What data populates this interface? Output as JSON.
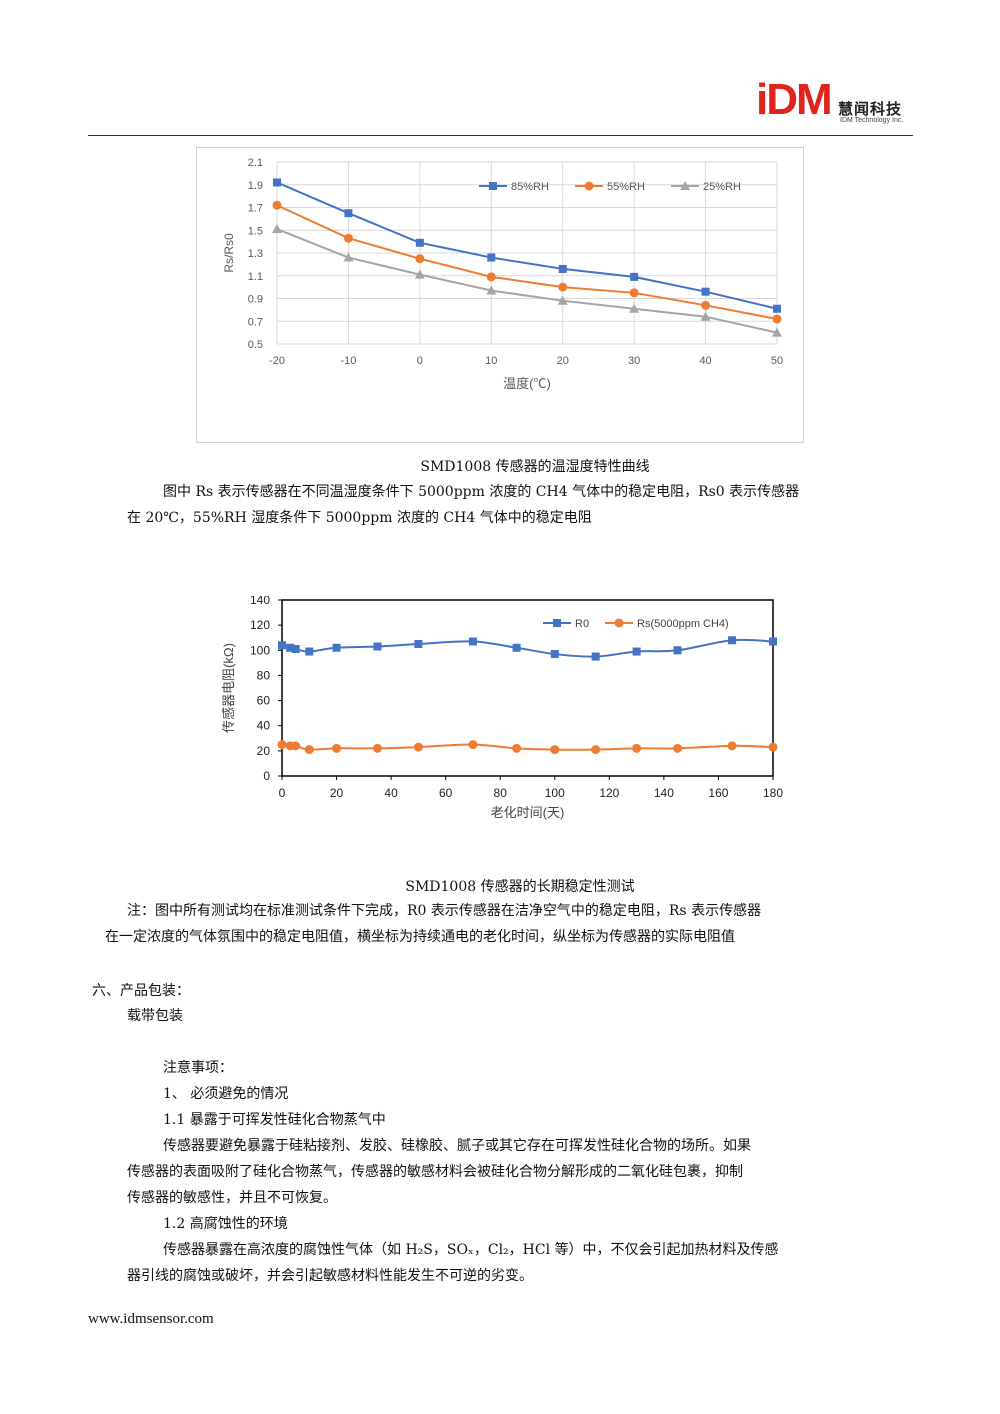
{
  "header": {
    "logo_mark": "iDM",
    "logo_cn": "慧闻科技",
    "logo_en": "IDM Technology Inc."
  },
  "charts": {
    "c1_caption": "SMD1008 传感器的温湿度特性曲线",
    "c2_caption": "SMD1008 传感器的长期稳定性测试"
  },
  "chart_data": [
    {
      "type": "line",
      "xlabel": "温度(℃)",
      "ylabel": "Rs/Rs0",
      "x": [
        -20,
        -10,
        0,
        10,
        20,
        30,
        40,
        50
      ],
      "xlim": [
        -20,
        50
      ],
      "ylim": [
        0.5,
        2.1
      ],
      "yticks": [
        0.5,
        0.7,
        0.9,
        1.1,
        1.3,
        1.5,
        1.7,
        1.9,
        2.1
      ],
      "grid": true,
      "legend": "top-right",
      "series": [
        {
          "name": "85%RH",
          "color": "#4472C4",
          "marker": "square",
          "values": [
            1.92,
            1.65,
            1.39,
            1.26,
            1.16,
            1.09,
            0.96,
            0.81
          ]
        },
        {
          "name": "55%RH",
          "color": "#ED7D31",
          "marker": "circle",
          "values": [
            1.72,
            1.43,
            1.25,
            1.09,
            1.0,
            0.95,
            0.84,
            0.72
          ]
        },
        {
          "name": "25%RH",
          "color": "#A5A5A5",
          "marker": "triangle",
          "values": [
            1.51,
            1.26,
            1.11,
            0.97,
            0.88,
            0.81,
            0.74,
            0.6
          ]
        }
      ]
    },
    {
      "type": "line",
      "xlabel": "老化时间(天)",
      "ylabel": "传感器电阻(kΩ)",
      "xlim": [
        0,
        180
      ],
      "ylim": [
        0,
        140
      ],
      "xticks": [
        0,
        20,
        40,
        60,
        80,
        100,
        120,
        140,
        160,
        180
      ],
      "yticks": [
        0,
        20,
        40,
        60,
        80,
        100,
        120,
        140
      ],
      "grid": false,
      "legend": "top-right",
      "series": [
        {
          "name": "R0",
          "color": "#4472C4",
          "marker": "square",
          "x": [
            0,
            3,
            5,
            10,
            20,
            35,
            50,
            70,
            86,
            100,
            115,
            130,
            145,
            165,
            180
          ],
          "values": [
            104,
            102,
            101,
            99,
            102,
            103,
            105,
            107,
            102,
            97,
            95,
            99,
            100,
            108,
            107
          ]
        },
        {
          "name": "Rs(5000ppm CH4)",
          "color": "#ED7D31",
          "marker": "circle",
          "x": [
            0,
            3,
            5,
            10,
            20,
            35,
            50,
            70,
            86,
            100,
            115,
            130,
            145,
            165,
            180
          ],
          "values": [
            25,
            24,
            24,
            21,
            22,
            22,
            23,
            25,
            22,
            21,
            21,
            22,
            22,
            24,
            23
          ]
        }
      ]
    }
  ],
  "text": {
    "p1_line1": "图中 Rs 表示传感器在不同温湿度条件下 5000ppm 浓度的 CH4 气体中的稳定电阻，Rs0 表示传感器",
    "p1_line2": "在 20℃，55%RH 湿度条件下 5000ppm 浓度的 CH4 气体中的稳定电阻",
    "note_line1": "注：图中所有测试均在标准测试条件下完成，R0 表示传感器在洁净空气中的稳定电阻，Rs 表示传感器",
    "note_line2": "在一定浓度的气体氛围中的稳定电阻值，横坐标为持续通电的老化时间，纵坐标为传感器的实际电阻值",
    "sec6_title": "六、产品包装：",
    "sec6_body": "载带包装",
    "notes_title": "注意事项：",
    "item1": "1、 必须避免的情况",
    "item1_1": "1.1 暴露于可挥发性硅化合物蒸气中",
    "item1_1_l1": "传感器要避免暴露于硅粘接剂、发胶、硅橡胶、腻子或其它存在可挥发性硅化合物的场所。如果",
    "item1_1_l2": "传感器的表面吸附了硅化合物蒸气，传感器的敏感材料会被硅化合物分解形成的二氧化硅包裹，抑制",
    "item1_1_l3": "传感器的敏感性，并且不可恢复。",
    "item1_2": "1.2 高腐蚀性的环境",
    "item1_2_l1": "传感器暴露在高浓度的腐蚀性气体（如 H₂S，SOₓ，Cl₂，HCl 等）中，不仅会引起加热材料及传感",
    "item1_2_l2": "器引线的腐蚀或破坏，并会引起敏感材料性能发生不可逆的劣变。"
  },
  "footer": {
    "url": "www.idmsensor.com"
  }
}
